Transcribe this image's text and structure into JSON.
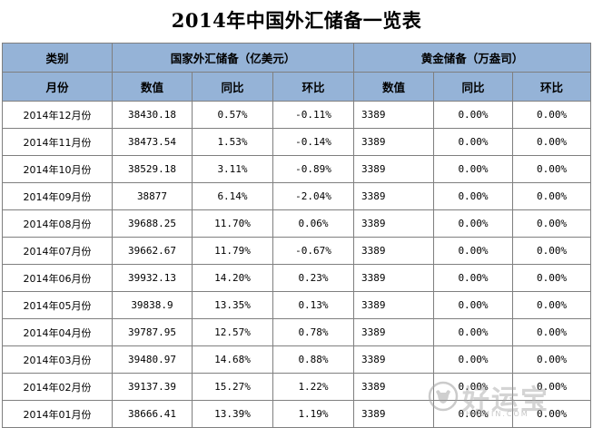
{
  "title": "2014年中国外汇储备一览表",
  "header": {
    "category": "类别",
    "forex_group": "国家外汇储备（亿美元）",
    "gold_group": "黄金储备（万盎司）",
    "month": "月份",
    "forex_value": "数值",
    "forex_yoy": "同比",
    "forex_mom": "环比",
    "gold_value": "数值",
    "gold_yoy": "同比",
    "gold_mom": "环比"
  },
  "rows": [
    {
      "month": "2014年12月份",
      "forex_value": "38430.18",
      "forex_yoy": "0.57%",
      "forex_mom": "-0.11%",
      "gold_value": "3389",
      "gold_yoy": "0.00%",
      "gold_mom": "0.00%"
    },
    {
      "month": "2014年11月份",
      "forex_value": "38473.54",
      "forex_yoy": "1.53%",
      "forex_mom": "-0.14%",
      "gold_value": "3389",
      "gold_yoy": "0.00%",
      "gold_mom": "0.00%"
    },
    {
      "month": "2014年10月份",
      "forex_value": "38529.18",
      "forex_yoy": "3.11%",
      "forex_mom": "-0.89%",
      "gold_value": "3389",
      "gold_yoy": "0.00%",
      "gold_mom": "0.00%"
    },
    {
      "month": "2014年09月份",
      "forex_value": "38877",
      "forex_yoy": "6.14%",
      "forex_mom": "-2.04%",
      "gold_value": "3389",
      "gold_yoy": "0.00%",
      "gold_mom": "0.00%"
    },
    {
      "month": "2014年08月份",
      "forex_value": "39688.25",
      "forex_yoy": "11.70%",
      "forex_mom": "0.06%",
      "gold_value": "3389",
      "gold_yoy": "0.00%",
      "gold_mom": "0.00%"
    },
    {
      "month": "2014年07月份",
      "forex_value": "39662.67",
      "forex_yoy": "11.79%",
      "forex_mom": "-0.67%",
      "gold_value": "3389",
      "gold_yoy": "0.00%",
      "gold_mom": "0.00%"
    },
    {
      "month": "2014年06月份",
      "forex_value": "39932.13",
      "forex_yoy": "14.20%",
      "forex_mom": "0.23%",
      "gold_value": "3389",
      "gold_yoy": "0.00%",
      "gold_mom": "0.00%"
    },
    {
      "month": "2014年05月份",
      "forex_value": "39838.9",
      "forex_yoy": "13.35%",
      "forex_mom": "0.13%",
      "gold_value": "3389",
      "gold_yoy": "0.00%",
      "gold_mom": "0.00%"
    },
    {
      "month": "2014年04月份",
      "forex_value": "39787.95",
      "forex_yoy": "12.57%",
      "forex_mom": "0.78%",
      "gold_value": "3389",
      "gold_yoy": "0.00%",
      "gold_mom": "0.00%"
    },
    {
      "month": "2014年03月份",
      "forex_value": "39480.97",
      "forex_yoy": "14.68%",
      "forex_mom": "0.88%",
      "gold_value": "3389",
      "gold_yoy": "0.00%",
      "gold_mom": "0.00%"
    },
    {
      "month": "2014年02月份",
      "forex_value": "39137.39",
      "forex_yoy": "15.27%",
      "forex_mom": "1.22%",
      "gold_value": "3389",
      "gold_yoy": "0.00%",
      "gold_mom": "0.00%"
    },
    {
      "month": "2014年01月份",
      "forex_value": "38666.41",
      "forex_yoy": "13.39%",
      "forex_mom": "1.19%",
      "gold_value": "3389",
      "gold_yoy": "0.00%",
      "gold_mom": "0.00%"
    }
  ],
  "watermark": {
    "text": "好运宝",
    "sub": "HAOJIN.COM",
    "icon": "bull-logo-icon"
  },
  "colors": {
    "header_bg": "#95b3d7",
    "border": "#7f7f7f"
  }
}
